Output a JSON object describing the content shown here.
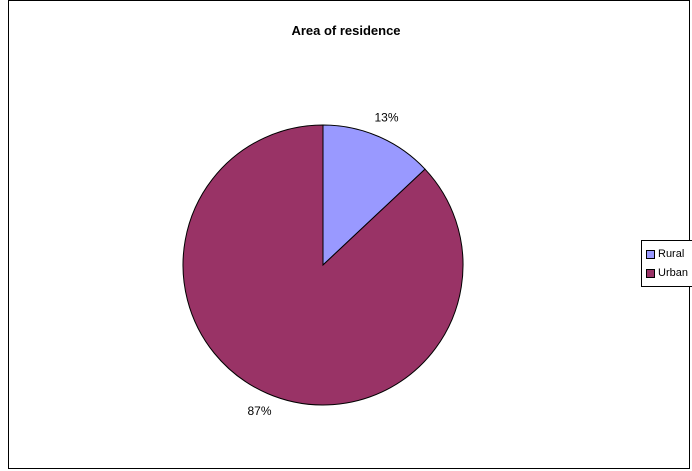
{
  "chart_data": {
    "type": "pie",
    "title": "Area of residence",
    "categories": [
      "Rural",
      "Urban"
    ],
    "values": [
      13,
      87
    ],
    "data_labels": [
      "13%",
      "87%"
    ],
    "colors": [
      "#9999ff",
      "#993366"
    ],
    "legend_position": "right"
  }
}
